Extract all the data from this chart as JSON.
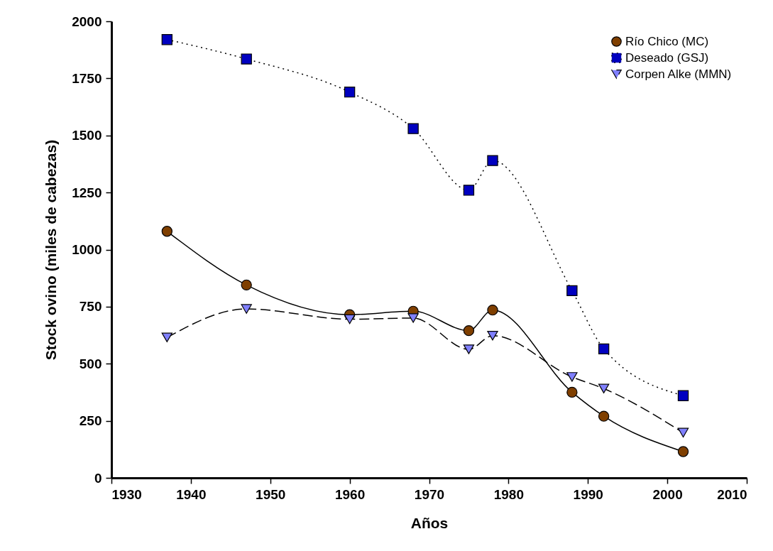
{
  "chart_data": {
    "type": "line",
    "xlabel": "Años",
    "ylabel": "Stock ovino (miles de cabezas)",
    "x": [
      1937,
      1947,
      1960,
      1968,
      1975,
      1978,
      1988,
      1992,
      2002
    ],
    "series": [
      {
        "name": "Río Chico (MC)",
        "color": "#7f3f00",
        "marker": "circle",
        "line_style": "solid",
        "values": [
          1080,
          845,
          715,
          730,
          645,
          735,
          375,
          270,
          115
        ]
      },
      {
        "name": "Deseado (GSJ)",
        "color": "#0000c0",
        "marker": "square",
        "line_style": "dotted",
        "values": [
          1920,
          1835,
          1690,
          1530,
          1260,
          1390,
          820,
          565,
          360
        ]
      },
      {
        "name": "Corpen Alke (MMN)",
        "color": "#8080ff",
        "marker": "triangle",
        "line_style": "dashed",
        "values": [
          615,
          740,
          695,
          700,
          563,
          623,
          442,
          391,
          198
        ]
      }
    ],
    "xlim": [
      1930,
      2010
    ],
    "xticks": [
      1930,
      1940,
      1950,
      1960,
      1970,
      1980,
      1990,
      2000,
      2010
    ],
    "ylim": [
      0,
      2000
    ],
    "yticks": [
      0,
      250,
      500,
      750,
      1000,
      1250,
      1500,
      1750,
      2000
    ],
    "legend": "top right"
  }
}
